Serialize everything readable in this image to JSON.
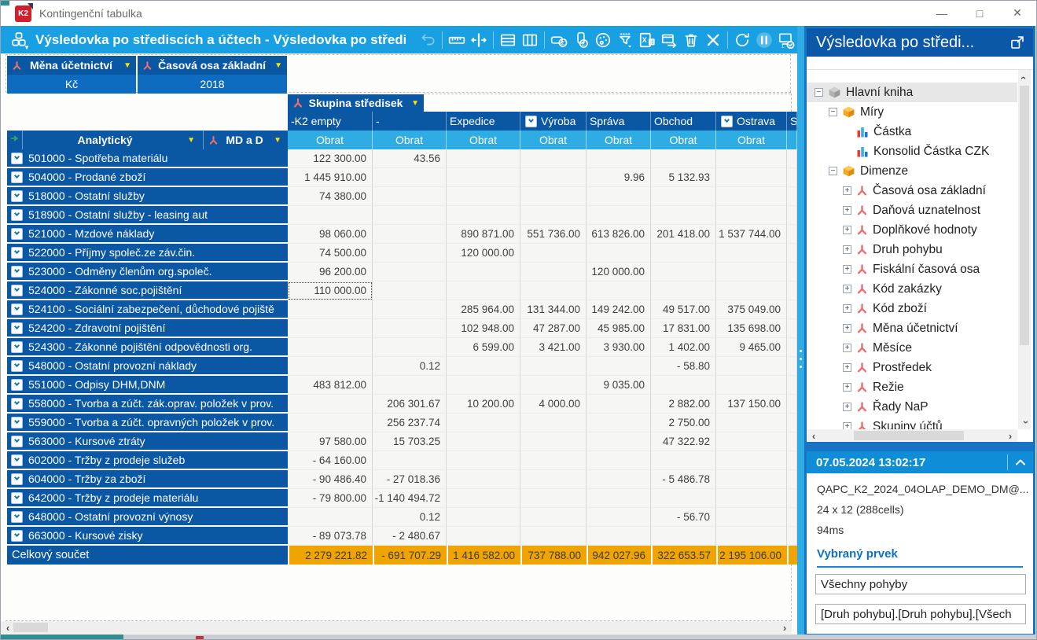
{
  "window": {
    "title": "Kontingenční tabulka",
    "controls": [
      {
        "name": "minimize",
        "glyph": "—"
      },
      {
        "name": "maximize",
        "glyph": "□"
      },
      {
        "name": "close",
        "glyph": "✕"
      }
    ]
  },
  "toolbar": {
    "title": "Výsledovka po střediscích a účtech - Výsledovka po střediscích ...",
    "icon_groups": [
      [
        "undo"
      ],
      [
        "ruler",
        "column-width"
      ],
      [
        "rows",
        "columns"
      ],
      [
        "row-totals",
        "column-totals",
        "palette",
        "filter",
        "excel-export",
        "export-window",
        "delete",
        "edit-tools"
      ],
      [
        "refresh",
        "pause",
        "hierarchy-check"
      ]
    ],
    "disabled_icons": [
      "undo"
    ],
    "highlighted_icons": [
      "pause"
    ]
  },
  "filters": [
    {
      "label": "Měna účetnictví",
      "value": "Kč"
    },
    {
      "label": "Časová osa základní",
      "value": "2018"
    }
  ],
  "pivot": {
    "column_dimension": "Skupina středisek",
    "row_area_header": {
      "first": "Analytický",
      "second": "MD a D"
    },
    "measure_label": "Obrat",
    "columns": [
      {
        "label": "-K2 empty",
        "checked": false
      },
      {
        "label": "-",
        "checked": false
      },
      {
        "label": "Expedice",
        "checked": false
      },
      {
        "label": "Výroba",
        "checked": true
      },
      {
        "label": "Správa",
        "checked": false
      },
      {
        "label": "Obchod",
        "checked": false
      },
      {
        "label": "Ostrava",
        "checked": true
      },
      {
        "label": "S",
        "checked": false,
        "partial": true
      }
    ],
    "rows": [
      {
        "label": "501000 - Spotřeba materiálu",
        "values": [
          "122 300.00",
          "43.56",
          "",
          "",
          "",
          "",
          ""
        ]
      },
      {
        "label": "504000 - Prodané zboží",
        "values": [
          "1 445 910.00",
          "",
          "",
          "",
          "9.96",
          "5 132.93",
          ""
        ]
      },
      {
        "label": "518000 - Ostatní služby",
        "values": [
          "74 380.00",
          "",
          "",
          "",
          "",
          "",
          ""
        ]
      },
      {
        "label": "518900 - Ostatní služby - leasing aut",
        "values": [
          "",
          "",
          "",
          "",
          "",
          "",
          ""
        ]
      },
      {
        "label": "521000 - Mzdové náklady",
        "values": [
          "98 060.00",
          "",
          "890 871.00",
          "551 736.00",
          "613 826.00",
          "201 418.00",
          "1 537 744.00"
        ]
      },
      {
        "label": "522000 - Příjmy společ.ze záv.čin.",
        "values": [
          "74 500.00",
          "",
          "120 000.00",
          "",
          "",
          "",
          ""
        ]
      },
      {
        "label": "523000 - Odměny členům org.společ.",
        "values": [
          "96 200.00",
          "",
          "",
          "",
          "120 000.00",
          "",
          ""
        ]
      },
      {
        "label": "524000 - Zákonné soc.pojištění",
        "values": [
          "110 000.00",
          "",
          "",
          "",
          "",
          "",
          ""
        ]
      },
      {
        "label": "524100 - Sociální zabezpečení, důchodové pojiště",
        "values": [
          "",
          "",
          "285 964.00",
          "131 344.00",
          "149 242.00",
          "49 517.00",
          "375 049.00"
        ]
      },
      {
        "label": "524200 - Zdravotní pojištění",
        "values": [
          "",
          "",
          "102 948.00",
          "47 287.00",
          "45 985.00",
          "17 831.00",
          "135 698.00"
        ]
      },
      {
        "label": "524300 - Zákonné pojištění odpovědnosti org.",
        "values": [
          "",
          "",
          "6 599.00",
          "3 421.00",
          "3 930.00",
          "1 402.00",
          "9 465.00"
        ]
      },
      {
        "label": "548000 - Ostatní provozní náklady",
        "values": [
          "",
          "0.12",
          "",
          "",
          "",
          "- 58.80",
          ""
        ]
      },
      {
        "label": "551000 - Odpisy DHM,DNM",
        "values": [
          "483 812.00",
          "",
          "",
          "",
          "9 035.00",
          "",
          ""
        ]
      },
      {
        "label": "558000 - Tvorba a zúčt. zák.oprav. položek v prov.",
        "values": [
          "",
          "206 301.67",
          "10 200.00",
          "4 000.00",
          "",
          "2 882.00",
          "137 150.00"
        ]
      },
      {
        "label": "559000 - Tvorba a zúčt. opravných položek v prov.",
        "values": [
          "",
          "256 237.74",
          "",
          "",
          "",
          "2 750.00",
          ""
        ]
      },
      {
        "label": "563000 - Kursové ztráty",
        "values": [
          "97 580.00",
          "15 703.25",
          "",
          "",
          "",
          "47 322.92",
          ""
        ]
      },
      {
        "label": "602000 - Tržby z prodeje služeb",
        "values": [
          "- 64 160.00",
          "",
          "",
          "",
          "",
          "",
          ""
        ]
      },
      {
        "label": "604000 - Tržby za zboží",
        "values": [
          "- 90 486.40",
          "- 27 018.36",
          "",
          "",
          "",
          "- 5 486.78",
          ""
        ]
      },
      {
        "label": "642000 - Tržby z prodeje materiálu",
        "values": [
          "- 79 800.00",
          "-1 140 494.72",
          "",
          "",
          "",
          "",
          ""
        ]
      },
      {
        "label": "648000 - Ostatní provozní výnosy",
        "values": [
          "",
          "0.12",
          "",
          "",
          "",
          "- 56.70",
          ""
        ]
      },
      {
        "label": "663000 - Kursové zisky",
        "values": [
          "- 89 073.78",
          "- 2 480.67",
          "",
          "",
          "",
          "",
          ""
        ]
      }
    ],
    "total_label": "Celkový součet",
    "totals": [
      "2 279 221.82",
      "- 691 707.29",
      "1 416 582.00",
      "737 788.00",
      "942 027.96",
      "322 653.57",
      "2 195 106.00"
    ],
    "focused_cell": {
      "row": 7,
      "col": 0
    }
  },
  "sidebar": {
    "title": "Výsledovka po středi...",
    "tree": [
      {
        "label": "Hlavní kniha",
        "icon": "cube",
        "depth": 0,
        "expander": "minus",
        "selected": true
      },
      {
        "label": "Míry",
        "icon": "folder",
        "depth": 1,
        "expander": "minus"
      },
      {
        "label": "Částka",
        "icon": "measure",
        "depth": 2,
        "expander": "none"
      },
      {
        "label": "Konsolid Částka CZK",
        "icon": "measure",
        "depth": 2,
        "expander": "none"
      },
      {
        "label": "Dimenze",
        "icon": "folder",
        "depth": 1,
        "expander": "minus"
      },
      {
        "label": "Časová osa základní",
        "icon": "dimension",
        "depth": 2,
        "expander": "plus"
      },
      {
        "label": "Daňová uznatelnost",
        "icon": "dimension",
        "depth": 2,
        "expander": "plus"
      },
      {
        "label": "Doplňkové hodnoty",
        "icon": "dimension",
        "depth": 2,
        "expander": "plus"
      },
      {
        "label": "Druh pohybu",
        "icon": "dimension",
        "depth": 2,
        "expander": "plus"
      },
      {
        "label": "Fiskální časová osa",
        "icon": "dimension",
        "depth": 2,
        "expander": "plus"
      },
      {
        "label": "Kód zakázky",
        "icon": "dimension",
        "depth": 2,
        "expander": "plus"
      },
      {
        "label": "Kód zboží",
        "icon": "dimension",
        "depth": 2,
        "expander": "plus"
      },
      {
        "label": "Měna účetnictví",
        "icon": "dimension",
        "depth": 2,
        "expander": "plus"
      },
      {
        "label": "Měsíce",
        "icon": "dimension",
        "depth": 2,
        "expander": "plus"
      },
      {
        "label": "Prostředek",
        "icon": "dimension",
        "depth": 2,
        "expander": "plus"
      },
      {
        "label": "Režie",
        "icon": "dimension",
        "depth": 2,
        "expander": "plus"
      },
      {
        "label": "Řady NaP",
        "icon": "dimension",
        "depth": 2,
        "expander": "plus"
      },
      {
        "label": "Skupiny účtů",
        "icon": "dimension",
        "depth": 2,
        "expander": "plus"
      }
    ]
  },
  "status": {
    "timestamp": "07.05.2024 13:02:17",
    "connection": "QAPC_K2_2024_04OLAP_DEMO_DM@...",
    "size": "24 x 12 (288cells)",
    "duration": "94ms",
    "selected_heading": "Vybraný prvek",
    "selected_value": "Všechny pohyby",
    "selected_path": "[Druh pohybu].[Druh pohybu].[Všech"
  },
  "colors": {
    "azure": "#18a0e2",
    "header_blue": "#0a57a4",
    "value_blue": "#0e6cc0",
    "light_azure": "#2face3",
    "panel_border": "#1873c4",
    "panel_header": "#0b58a8",
    "status_header": "#0f8dd6",
    "total_orange": "#f0a400",
    "yellow": "#ffe100",
    "dimension_red": "#ed6e6e",
    "data_bg": "#f6f6f5",
    "link_blue": "#0b72c8"
  }
}
